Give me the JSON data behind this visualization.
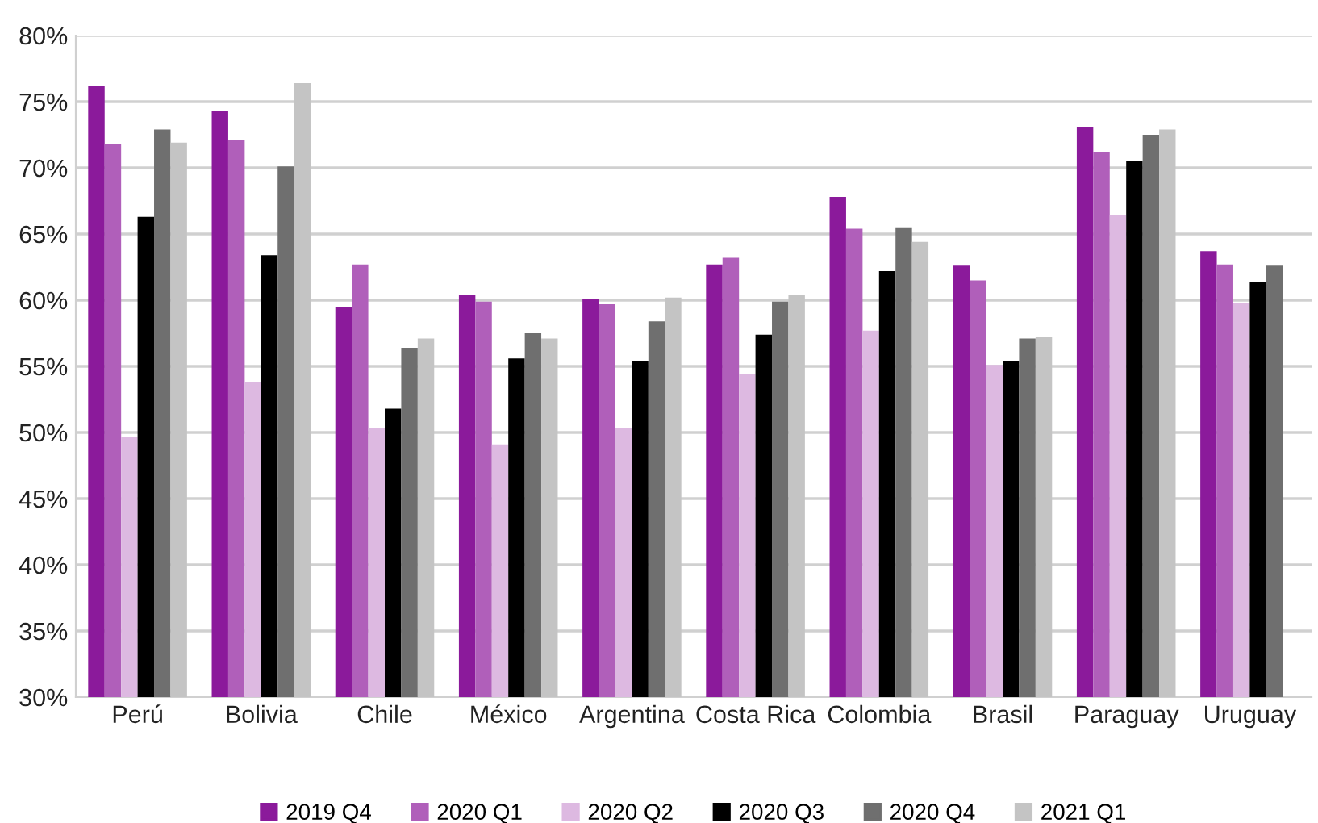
{
  "chart_data": {
    "type": "bar",
    "categories": [
      "Perú",
      "Bolivia",
      "Chile",
      "México",
      "Argentina",
      "Costa Rica",
      "Colombia",
      "Brasil",
      "Paraguay",
      "Uruguay"
    ],
    "series": [
      {
        "name": "2019 Q4",
        "color": "#8b1a9b",
        "values": [
          76.2,
          74.3,
          59.5,
          60.4,
          60.1,
          62.7,
          67.8,
          62.6,
          73.1,
          63.7
        ]
      },
      {
        "name": "2020 Q1",
        "color": "#b05fba",
        "values": [
          71.8,
          72.1,
          62.7,
          59.9,
          59.7,
          63.2,
          65.4,
          61.5,
          71.2,
          62.7
        ]
      },
      {
        "name": "2020 Q2",
        "color": "#ddb9e1",
        "values": [
          49.7,
          53.8,
          50.3,
          49.1,
          50.3,
          54.4,
          57.7,
          55.1,
          66.4,
          59.8
        ]
      },
      {
        "name": "2020 Q3",
        "color": "#000000",
        "values": [
          66.3,
          63.4,
          51.8,
          55.6,
          55.4,
          57.4,
          62.2,
          55.4,
          70.5,
          61.4
        ]
      },
      {
        "name": "2020 Q4",
        "color": "#6f6f6f",
        "values": [
          72.9,
          70.1,
          56.4,
          57.5,
          58.4,
          59.9,
          65.5,
          57.1,
          72.5,
          62.6
        ]
      },
      {
        "name": "2021 Q1",
        "color": "#c4c4c4",
        "values": [
          71.9,
          76.4,
          57.1,
          57.1,
          60.2,
          60.4,
          64.4,
          57.2,
          72.9,
          null
        ]
      }
    ],
    "ylim": [
      30,
      80
    ],
    "yticks": [
      {
        "value": 30,
        "label": "30%"
      },
      {
        "value": 35,
        "label": "35%"
      },
      {
        "value": 40,
        "label": "40%"
      },
      {
        "value": 45,
        "label": "45%"
      },
      {
        "value": 50,
        "label": "50%"
      },
      {
        "value": 55,
        "label": "55%"
      },
      {
        "value": 60,
        "label": "60%"
      },
      {
        "value": 65,
        "label": "65%"
      },
      {
        "value": 70,
        "label": "70%"
      },
      {
        "value": 75,
        "label": "75%"
      },
      {
        "value": 80,
        "label": "80%"
      }
    ],
    "grid": "y",
    "legend": "bottom"
  }
}
